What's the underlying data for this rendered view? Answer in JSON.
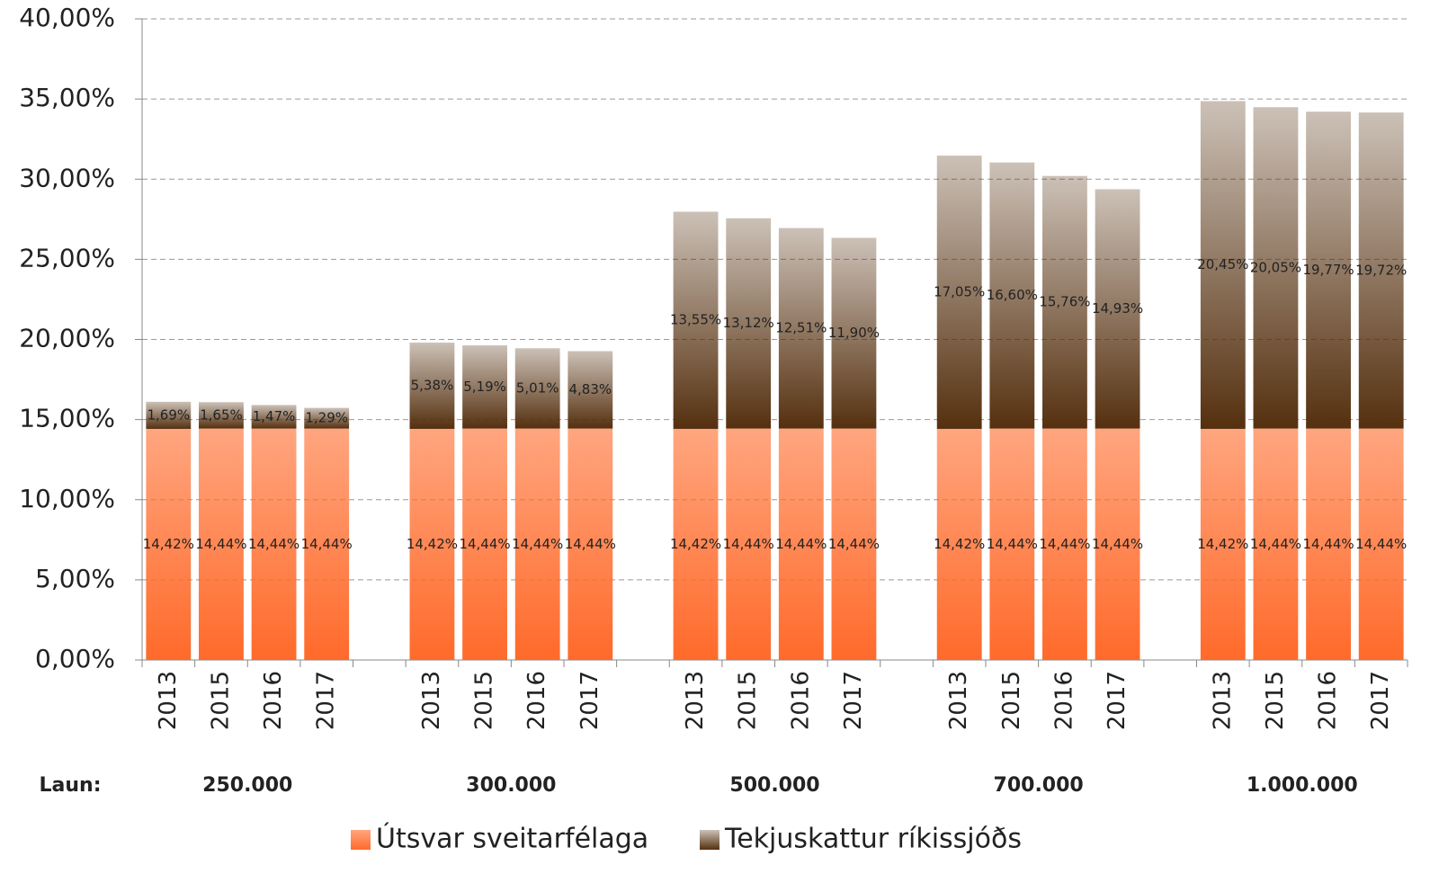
{
  "chart_data": {
    "type": "stacked_bar",
    "categories": [
      "2013",
      "2015",
      "2016",
      "2017",
      "2013",
      "2015",
      "2016",
      "2017",
      "2013",
      "2015",
      "2016",
      "2017",
      "2013",
      "2015",
      "2016",
      "2017",
      "2013",
      "2015",
      "2016",
      "2017"
    ],
    "group_title": "Laun:",
    "group_labels": [
      "250.000",
      "300.000",
      "500.000",
      "700.000",
      "1.000.000"
    ],
    "series": [
      {
        "name": "Útsvar sveitarfélaga",
        "color": "#ff6a2a",
        "values": [
          14.42,
          14.44,
          14.44,
          14.44,
          14.42,
          14.44,
          14.44,
          14.44,
          14.42,
          14.44,
          14.44,
          14.44,
          14.42,
          14.44,
          14.44,
          14.44,
          14.42,
          14.44,
          14.44,
          14.44
        ],
        "value_labels": [
          "14,42%",
          "14,44%",
          "14,44%",
          "14,44%",
          "14,42%",
          "14,44%",
          "14,44%",
          "14,44%",
          "14,42%",
          "14,44%",
          "14,44%",
          "14,44%",
          "14,42%",
          "14,44%",
          "14,44%",
          "14,44%",
          "14,42%",
          "14,44%",
          "14,44%",
          "14,44%"
        ]
      },
      {
        "name": "Tekjuskattur ríkissjóðs",
        "color": "#55300f",
        "values": [
          1.69,
          1.65,
          1.47,
          1.29,
          5.38,
          5.19,
          5.01,
          4.83,
          13.55,
          13.12,
          12.51,
          11.9,
          17.05,
          16.6,
          15.76,
          14.93,
          20.45,
          20.05,
          19.77,
          19.72
        ],
        "value_labels": [
          "1,69%",
          "1,65%",
          "1,47%",
          "1,29%",
          "5,38%",
          "5,19%",
          "5,01%",
          "4,83%",
          "13,55%",
          "13,12%",
          "12,51%",
          "11,90%",
          "17,05%",
          "16,60%",
          "15,76%",
          "14,93%",
          "20,45%",
          "20,05%",
          "19,77%",
          "19,72%"
        ]
      }
    ],
    "ylim": [
      0,
      40
    ],
    "yticks": [
      {
        "value": 0,
        "label": "0,00%"
      },
      {
        "value": 5,
        "label": "5,00%"
      },
      {
        "value": 10,
        "label": "10,00%"
      },
      {
        "value": 15,
        "label": "15,00%"
      },
      {
        "value": 20,
        "label": "20,00%"
      },
      {
        "value": 25,
        "label": "25,00%"
      },
      {
        "value": 30,
        "label": "30,00%"
      },
      {
        "value": 35,
        "label": "35,00%"
      },
      {
        "value": 40,
        "label": "40,00%"
      }
    ],
    "grid": true,
    "legend": "bottom"
  }
}
